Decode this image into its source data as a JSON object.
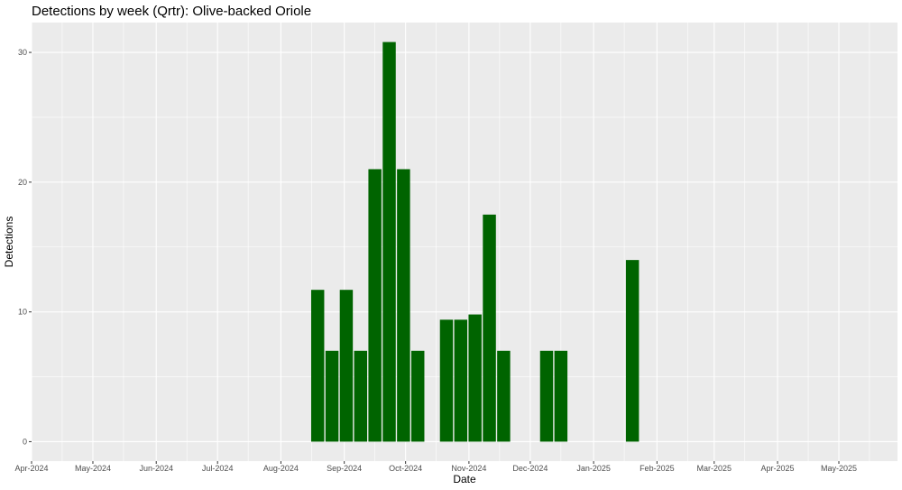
{
  "chart_data": {
    "type": "bar",
    "title": "Detections by week (Qrtr): Olive-backed Oriole",
    "xlabel": "Date",
    "ylabel": "Detections",
    "x_ticks": [
      "Apr-2024",
      "May-2024",
      "Jun-2024",
      "Jul-2024",
      "Aug-2024",
      "Sep-2024",
      "Oct-2024",
      "Nov-2024",
      "Dec-2024",
      "Jan-2025",
      "Feb-2025",
      "Mar-2025",
      "Apr-2025",
      "May-2025"
    ],
    "y_ticks": [
      "0",
      "10",
      "20",
      "30"
    ],
    "ylim": [
      -1.5,
      32.3
    ],
    "grid": true,
    "colors": {
      "bar": "#006400",
      "panel": "#ebebeb",
      "grid": "#ffffff"
    },
    "bars": [
      {
        "week": "2024-08-19",
        "value": 11.7
      },
      {
        "week": "2024-08-26",
        "value": 7.0
      },
      {
        "week": "2024-09-02",
        "value": 11.7
      },
      {
        "week": "2024-09-09",
        "value": 7.0
      },
      {
        "week": "2024-09-16",
        "value": 21.0
      },
      {
        "week": "2024-09-23",
        "value": 30.8
      },
      {
        "week": "2024-09-30",
        "value": 21.0
      },
      {
        "week": "2024-10-07",
        "value": 7.0
      },
      {
        "week": "2024-10-21",
        "value": 9.4
      },
      {
        "week": "2024-10-28",
        "value": 9.4
      },
      {
        "week": "2024-11-04",
        "value": 9.8
      },
      {
        "week": "2024-11-11",
        "value": 17.5
      },
      {
        "week": "2024-11-18",
        "value": 7.0
      },
      {
        "week": "2024-12-09",
        "value": 7.0
      },
      {
        "week": "2024-12-16",
        "value": 7.0
      },
      {
        "week": "2025-01-20",
        "value": 14.0
      }
    ]
  }
}
